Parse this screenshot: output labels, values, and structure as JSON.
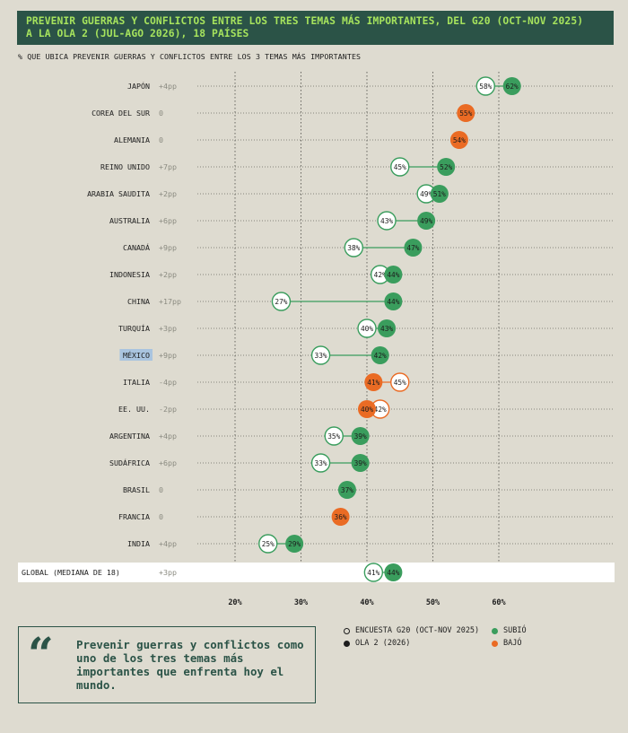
{
  "header": {
    "title_line1": "PREVENIR GUERRAS Y CONFLICTOS ENTRE LOS TRES TEMAS MÁS IMPORTANTES, DEL G20 (OCT-NOV 2025)",
    "title_line2": "A LA OLA 2 (JUL-AGO 2026), 18 PAÍSES"
  },
  "subtitle": "% QUE UBICA PREVENIR GUERRAS Y CONFLICTOS ENTRE LOS 3 TEMAS MÁS IMPORTANTES",
  "quote": {
    "mark": "“",
    "text": "Prevenir guerras y conflictos como uno de los tres temas más importantes que enfrenta hoy el mundo."
  },
  "legend": {
    "g20": "ENCUESTA G20 (OCT-NOV 2025)",
    "ola2": "OLA 2 (2026)",
    "up": "SUBIÓ",
    "down": "BAJÓ"
  },
  "colors": {
    "up": "#3a9d5d",
    "down": "#ea6b24",
    "header_bg": "#2b5347",
    "header_text": "#a6e35d",
    "highlight": "#a9c4df"
  },
  "chart_data": {
    "type": "dot-plot",
    "xlim": [
      20,
      60
    ],
    "ticks": [
      "20%",
      "30%",
      "40%",
      "50%",
      "60%"
    ],
    "tick_values": [
      20,
      30,
      40,
      50,
      60
    ],
    "series_names": [
      "ENCUESTA G20 (OCT-NOV 2025)",
      "OLA 2 (2026)"
    ],
    "rows": [
      {
        "country": "JAPÓN",
        "change": "+4pp",
        "g20": 58,
        "ola2": 62,
        "g20_label": "58%",
        "ola2_label": "62%",
        "dir": "up"
      },
      {
        "country": "COREA DEL SUR",
        "change": "0",
        "g20": 55,
        "ola2": 55,
        "g20_label": "",
        "ola2_label": "55%",
        "dir": "down"
      },
      {
        "country": "ALEMANIA",
        "change": "0",
        "g20": 54,
        "ola2": 54,
        "g20_label": "",
        "ola2_label": "54%",
        "dir": "down"
      },
      {
        "country": "REINO UNIDO",
        "change": "+7pp",
        "g20": 45,
        "ola2": 52,
        "g20_label": "45%",
        "ola2_label": "52%",
        "dir": "up"
      },
      {
        "country": "ARABIA SAUDITA",
        "change": "+2pp",
        "g20": 49,
        "ola2": 51,
        "g20_label": "49%",
        "ola2_label": "51%",
        "dir": "up"
      },
      {
        "country": "AUSTRALIA",
        "change": "+6pp",
        "g20": 43,
        "ola2": 49,
        "g20_label": "43%",
        "ola2_label": "49%",
        "dir": "up"
      },
      {
        "country": "CANADÁ",
        "change": "+9pp",
        "g20": 38,
        "ola2": 47,
        "g20_label": "38%",
        "ola2_label": "47%",
        "dir": "up"
      },
      {
        "country": "INDONESIA",
        "change": "+2pp",
        "g20": 42,
        "ola2": 44,
        "g20_label": "42%",
        "ola2_label": "44%",
        "dir": "up"
      },
      {
        "country": "CHINA",
        "change": "+17pp",
        "g20": 27,
        "ola2": 44,
        "g20_label": "27%",
        "ola2_label": "44%",
        "dir": "up"
      },
      {
        "country": "TURQUÍA",
        "change": "+3pp",
        "g20": 40,
        "ola2": 43,
        "g20_label": "40%",
        "ola2_label": "43%",
        "dir": "up"
      },
      {
        "country": "MÉXICO",
        "change": "+9pp",
        "g20": 33,
        "ola2": 42,
        "g20_label": "33%",
        "ola2_label": "42%",
        "dir": "up",
        "highlight": true
      },
      {
        "country": "ITALIA",
        "change": "-4pp",
        "g20": 45,
        "ola2": 41,
        "g20_label": "45%",
        "ola2_label": "41%",
        "dir": "down"
      },
      {
        "country": "EE. UU.",
        "change": "-2pp",
        "g20": 42,
        "ola2": 40,
        "g20_label": "42%",
        "ola2_label": "40%",
        "dir": "down"
      },
      {
        "country": "ARGENTINA",
        "change": "+4pp",
        "g20": 35,
        "ola2": 39,
        "g20_label": "35%",
        "ola2_label": "39%",
        "dir": "up"
      },
      {
        "country": "SUDÁFRICA",
        "change": "+6pp",
        "g20": 33,
        "ola2": 39,
        "g20_label": "33%",
        "ola2_label": "39%",
        "dir": "up"
      },
      {
        "country": "BRASIL",
        "change": "0",
        "g20": 37,
        "ola2": 37,
        "g20_label": "",
        "ola2_label": "37%",
        "dir": "up"
      },
      {
        "country": "FRANCIA",
        "change": "0",
        "g20": 36,
        "ola2": 36,
        "g20_label": "",
        "ola2_label": "36%",
        "dir": "down"
      },
      {
        "country": "INDIA",
        "change": "+4pp",
        "g20": 25,
        "ola2": 29,
        "g20_label": "25%",
        "ola2_label": "29%",
        "dir": "up"
      },
      {
        "country": "GLOBAL (MEDIANA DE 18)",
        "change": "+3pp",
        "g20": 41,
        "ola2": 44,
        "g20_label": "41%",
        "ola2_label": "44%",
        "dir": "up",
        "global": true
      }
    ]
  }
}
